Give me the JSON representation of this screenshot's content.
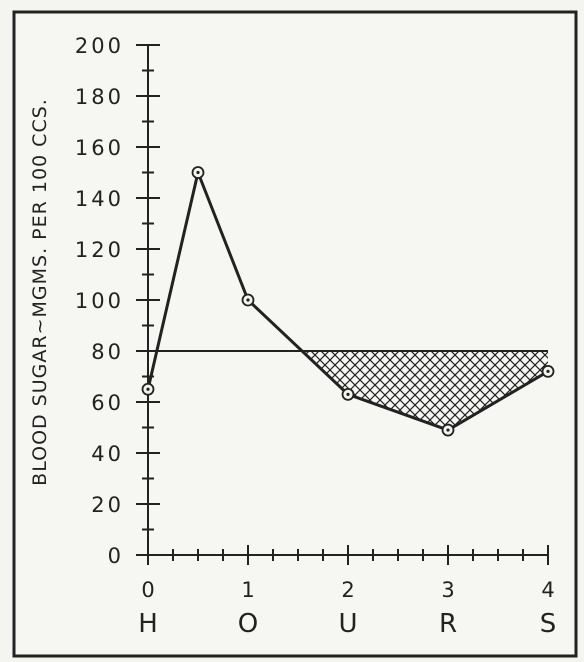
{
  "chart_data": {
    "type": "line",
    "title": "",
    "ylabel": "BLOOD SUGAR~MGMS. PER 100 CCS.",
    "xlabel_letters": [
      "H",
      "O",
      "U",
      "R",
      "S"
    ],
    "x": [
      0,
      0.5,
      1,
      2,
      3,
      4
    ],
    "y": [
      65,
      150,
      100,
      63,
      49,
      72
    ],
    "xlim": [
      0,
      4
    ],
    "ylim": [
      0,
      200
    ],
    "x_ticks": [
      0,
      1,
      2,
      3,
      4
    ],
    "x_tick_labels": [
      "0",
      "1",
      "2",
      "3",
      "4"
    ],
    "y_ticks": [
      0,
      20,
      40,
      60,
      80,
      100,
      120,
      140,
      160,
      180,
      200
    ],
    "y_tick_labels": [
      "0",
      "20",
      "40",
      "60",
      "80",
      "100",
      "120",
      "140",
      "160",
      "180",
      "200"
    ],
    "reference_line": 80,
    "shaded_region": "below reference line, above curve (hatched)",
    "grid": false,
    "line_color": "#222222",
    "background": "#f4f4f1"
  }
}
